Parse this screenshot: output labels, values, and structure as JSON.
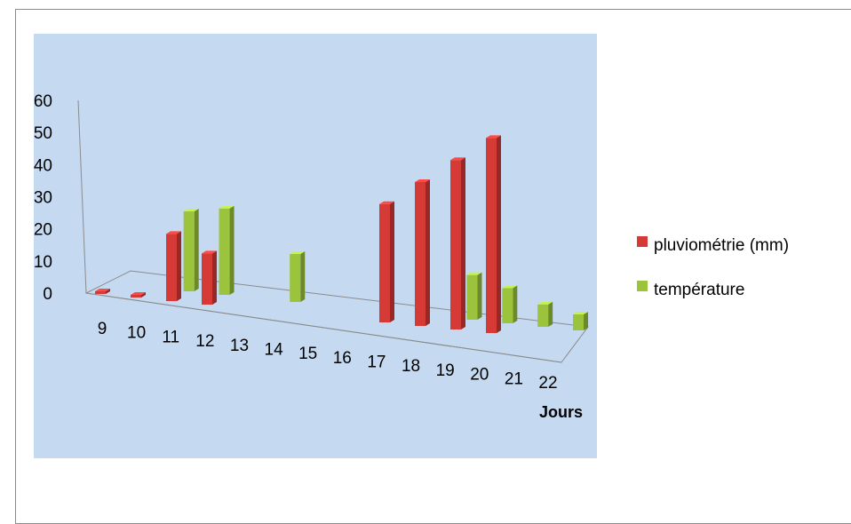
{
  "chart_data": {
    "type": "bar",
    "title": "",
    "xlabel": "Jours",
    "ylabel": "",
    "categories": [
      "9",
      "10",
      "11",
      "12",
      "13",
      "14",
      "15",
      "16",
      "17",
      "18",
      "19",
      "20",
      "21",
      "22"
    ],
    "series": [
      {
        "name": "pluviométrie (mm)",
        "color": "#d63a36",
        "values": [
          0.5,
          0.5,
          21,
          16,
          0,
          0,
          0,
          0,
          37,
          45,
          53,
          61,
          0,
          0
        ]
      },
      {
        "name": "température",
        "color": "#9bc33c",
        "values": [
          0,
          0,
          25,
          27,
          0,
          15,
          0,
          0,
          0,
          0,
          14,
          11,
          7,
          5
        ]
      }
    ],
    "y_ticks": [
      "60",
      "50",
      "40",
      "30",
      "20",
      "10",
      "0"
    ],
    "ylim": [
      0,
      60
    ],
    "legend_position": "right",
    "plot_background": "#c5d9f1",
    "style": "3d-column"
  }
}
